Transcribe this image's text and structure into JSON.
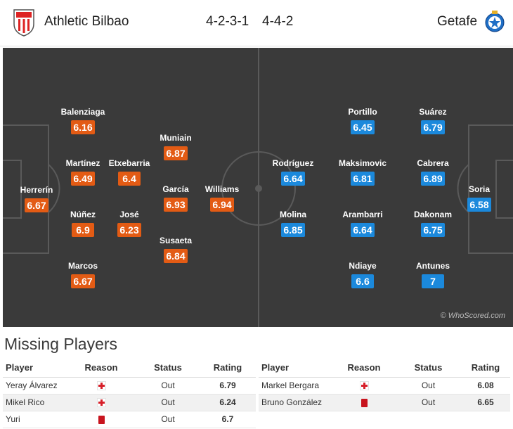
{
  "header": {
    "home_team": "Athletic Bilbao",
    "home_formation": "4-2-3-1",
    "away_formation": "4-4-2",
    "away_team": "Getafe"
  },
  "colors": {
    "pitch": "#3a3a3a",
    "home_rating": "#e35b14",
    "away_rating": "#1b89dc",
    "injury": "#d6202a",
    "red_card": "#c8141e"
  },
  "home_players": [
    {
      "name": "Herrerín",
      "rating": "6.67"
    },
    {
      "name": "Balenziaga",
      "rating": "6.16"
    },
    {
      "name": "Martínez",
      "rating": "6.49"
    },
    {
      "name": "Núñez",
      "rating": "6.9"
    },
    {
      "name": "Marcos",
      "rating": "6.67"
    },
    {
      "name": "Etxebarria",
      "rating": "6.4"
    },
    {
      "name": "José",
      "rating": "6.23"
    },
    {
      "name": "Muniain",
      "rating": "6.87"
    },
    {
      "name": "García",
      "rating": "6.93"
    },
    {
      "name": "Susaeta",
      "rating": "6.84"
    },
    {
      "name": "Williams",
      "rating": "6.94"
    }
  ],
  "away_players": [
    {
      "name": "Rodríguez",
      "rating": "6.64"
    },
    {
      "name": "Molina",
      "rating": "6.85"
    },
    {
      "name": "Portillo",
      "rating": "6.45"
    },
    {
      "name": "Maksimovic",
      "rating": "6.81"
    },
    {
      "name": "Arambarri",
      "rating": "6.64"
    },
    {
      "name": "Ndiaye",
      "rating": "6.6"
    },
    {
      "name": "Suárez",
      "rating": "6.79"
    },
    {
      "name": "Cabrera",
      "rating": "6.89"
    },
    {
      "name": "Dakonam",
      "rating": "6.75"
    },
    {
      "name": "Antunes",
      "rating": "7"
    },
    {
      "name": "Soria",
      "rating": "6.58"
    }
  ],
  "watermark": "© WhoScored.com",
  "missing": {
    "title": "Missing Players",
    "headers": {
      "player": "Player",
      "reason": "Reason",
      "status": "Status",
      "rating": "Rating"
    },
    "home": [
      {
        "player": "Yeray Álvarez",
        "reason_icon": "injury-icon",
        "status": "Out",
        "rating": "6.79"
      },
      {
        "player": "Mikel Rico",
        "reason_icon": "injury-icon",
        "status": "Out",
        "rating": "6.24"
      },
      {
        "player": "Yuri",
        "reason_icon": "red-card-icon",
        "status": "Out",
        "rating": "6.7"
      }
    ],
    "away": [
      {
        "player": "Markel Bergara",
        "reason_icon": "injury-icon",
        "status": "Out",
        "rating": "6.08"
      },
      {
        "player": "Bruno González",
        "reason_icon": "red-card-icon",
        "status": "Out",
        "rating": "6.65"
      }
    ]
  }
}
